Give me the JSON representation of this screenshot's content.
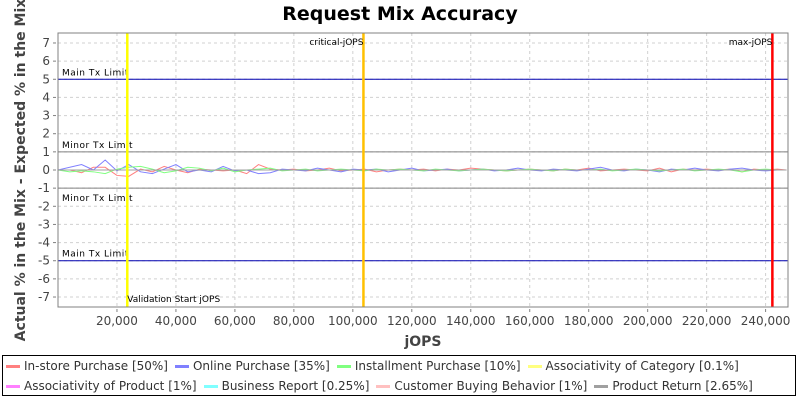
{
  "chart_data": {
    "type": "line",
    "title": "Request Mix Accuracy",
    "xlabel": "jOPS",
    "ylabel": "Actual % in the Mix - Expected % in the Mix",
    "xlim": [
      0,
      247600
    ],
    "ylim": [
      -7.55,
      7.55
    ],
    "x_ticks": [
      "20,000",
      "40,000",
      "60,000",
      "80,000",
      "100,000",
      "120,000",
      "140,000",
      "160,000",
      "180,000",
      "200,000",
      "220,000",
      "240,000"
    ],
    "x_tick_values": [
      20000,
      40000,
      60000,
      80000,
      100000,
      120000,
      140000,
      160000,
      180000,
      200000,
      220000,
      240000
    ],
    "y_ticks": [
      7,
      6,
      5,
      4,
      3,
      2,
      1,
      0,
      -1,
      -2,
      -3,
      -4,
      -5,
      -6,
      -7
    ],
    "grid": true,
    "legend_position": "bottom",
    "x": [
      0,
      4000,
      8000,
      12000,
      16000,
      20000,
      24000,
      28000,
      32000,
      36000,
      40000,
      44000,
      48000,
      52000,
      56000,
      60000,
      64000,
      68000,
      72000,
      76000,
      80000,
      84000,
      88000,
      92000,
      96000,
      100000,
      104000,
      108000,
      112000,
      116000,
      120000,
      124000,
      128000,
      132000,
      136000,
      140000,
      144000,
      148000,
      152000,
      156000,
      160000,
      164000,
      168000,
      172000,
      176000,
      180000,
      184000,
      188000,
      192000,
      196000,
      200000,
      204000,
      208000,
      212000,
      216000,
      220000,
      224000,
      228000,
      232000,
      236000,
      240000,
      244000,
      247000
    ],
    "series": [
      {
        "name": "In-store Purchase [50%]",
        "color": "#ff8080",
        "values": [
          0,
          0,
          -0.15,
          0.15,
          0.15,
          -0.3,
          -0.35,
          0.05,
          -0.1,
          0.2,
          0,
          -0.15,
          0.05,
          0,
          -0.05,
          0,
          -0.2,
          0.3,
          0.05,
          0,
          0.05,
          -0.05,
          0,
          0.1,
          -0.05,
          0,
          0.05,
          -0.1,
          0,
          0.05,
          0,
          0.05,
          -0.05,
          0.05,
          0,
          0.1,
          0.05,
          0,
          -0.05,
          0,
          0.05,
          0,
          -0.05,
          0.05,
          0,
          0.1,
          -0.05,
          0,
          0.05,
          0,
          -0.05,
          0.1,
          -0.1,
          0.05,
          0,
          0.05,
          0,
          0.05,
          -0.1,
          0.05,
          0,
          0.05,
          0
        ]
      },
      {
        "name": "Online Purchase [35%]",
        "color": "#8080ff",
        "values": [
          0,
          0.15,
          0.3,
          0,
          0.55,
          -0.05,
          0.3,
          -0.1,
          -0.2,
          0.05,
          0.3,
          -0.1,
          0,
          -0.1,
          0.2,
          -0.05,
          0,
          -0.2,
          -0.15,
          0.05,
          0,
          -0.05,
          0.1,
          0,
          -0.1,
          0.05,
          0,
          0.05,
          -0.1,
          0,
          0.1,
          -0.05,
          0,
          0.05,
          -0.05,
          0,
          0.05,
          -0.05,
          0,
          0.1,
          0,
          -0.05,
          0.05,
          0,
          -0.05,
          0.05,
          0.15,
          0,
          -0.05,
          0.05,
          0,
          -0.1,
          0.05,
          0,
          0.1,
          0,
          -0.05,
          0.05,
          0.1,
          0,
          -0.05,
          0,
          0
        ]
      },
      {
        "name": "Installment Purchase [10%]",
        "color": "#80ff80",
        "values": [
          0,
          -0.1,
          -0.05,
          -0.1,
          -0.2,
          0.05,
          0.15,
          0.2,
          0.05,
          -0.15,
          -0.05,
          0.15,
          0.1,
          -0.05,
          0.1,
          -0.1,
          0,
          0.05,
          0.1,
          -0.05,
          0,
          0.05,
          -0.05,
          0,
          0.05,
          0,
          -0.05,
          0.05,
          0,
          0.05,
          0,
          -0.05,
          0.05,
          0,
          -0.05,
          0,
          0.05,
          0,
          -0.05,
          0,
          0.05,
          0,
          -0.05,
          0.05,
          0,
          0,
          0.05,
          -0.05,
          0,
          0.05,
          0,
          -0.05,
          0,
          0.05,
          -0.05,
          0,
          0.05,
          0,
          -0.1,
          0,
          0.05,
          0,
          0
        ]
      },
      {
        "name": "Associativity of Category [0.1%]",
        "color": "#ffff80",
        "values": [
          0,
          0,
          0,
          0,
          0,
          0,
          0,
          0,
          0,
          0,
          0,
          0,
          0,
          0,
          0,
          0,
          0,
          0,
          0,
          0,
          0,
          0,
          0,
          0,
          0,
          0,
          0,
          0,
          0,
          0,
          0,
          0,
          0,
          0,
          0,
          0,
          0,
          0,
          0,
          0,
          0,
          0,
          0,
          0,
          0,
          0,
          0,
          0,
          0,
          0,
          0,
          0,
          0,
          0,
          0,
          0,
          0,
          0,
          0,
          0,
          0,
          0,
          0
        ]
      },
      {
        "name": "Associativity of Product [1%]",
        "color": "#ff80ff",
        "values": [
          0,
          0,
          0,
          0,
          0,
          0,
          0,
          0,
          0,
          0,
          0,
          0,
          0,
          0,
          0,
          0,
          0,
          0,
          0,
          0,
          0,
          0,
          0,
          0,
          0,
          0,
          0,
          0,
          0,
          0,
          0,
          0,
          0,
          0,
          0,
          0,
          0,
          0,
          0,
          0,
          0,
          0,
          0,
          0,
          0,
          0,
          0,
          0,
          0,
          0,
          0,
          0,
          0,
          0,
          0,
          0,
          0,
          0,
          0,
          0,
          0,
          0,
          0
        ]
      },
      {
        "name": "Business Report [0.25%]",
        "color": "#80ffff",
        "values": [
          0,
          0,
          0,
          0,
          0,
          0,
          0,
          0,
          0,
          0,
          0,
          0,
          0,
          0,
          0,
          0,
          0,
          0,
          0,
          0,
          0,
          0,
          0,
          0,
          0,
          0,
          0,
          0,
          0,
          0,
          0,
          0,
          0,
          0,
          0,
          0,
          0,
          0,
          0,
          0,
          0,
          0,
          0,
          0,
          0,
          0,
          0,
          0,
          0,
          0,
          0,
          0,
          0,
          0,
          0,
          0,
          0,
          0,
          0,
          0,
          0,
          0,
          0
        ]
      },
      {
        "name": "Customer Buying Behavior [1%]",
        "color": "#ffc0c0",
        "values": [
          0,
          0,
          0,
          0,
          0,
          0,
          0,
          0,
          0,
          0,
          0,
          0,
          0,
          0,
          0,
          0,
          0,
          0,
          0,
          0,
          0,
          0,
          0,
          0,
          0,
          0,
          0,
          0,
          0,
          0,
          0,
          0,
          0,
          0,
          0,
          0,
          0,
          0,
          0,
          0,
          0,
          0,
          0,
          0,
          0,
          0,
          0,
          0,
          0,
          0,
          0,
          0,
          0,
          0,
          0,
          0,
          0,
          0,
          0,
          0,
          0,
          0,
          0
        ]
      },
      {
        "name": "Product Return [2.65%]",
        "color": "#a0a0a0",
        "values": [
          0,
          0,
          0,
          0,
          0,
          0,
          0,
          0,
          0,
          0,
          0,
          0,
          0,
          0,
          0,
          0,
          0,
          0,
          0,
          0,
          0,
          0,
          0,
          0,
          0,
          0,
          0,
          0,
          0,
          0,
          0,
          0,
          0,
          0,
          0,
          0,
          0,
          0,
          0,
          0,
          0,
          0,
          0,
          0,
          0,
          0,
          0,
          0,
          0,
          0,
          0,
          0,
          0,
          0,
          0,
          0,
          0,
          0,
          0,
          0,
          0,
          0,
          0
        ]
      }
    ],
    "horizontal_markers": [
      {
        "label": "Main Tx Limit",
        "value": 5,
        "color": "#0000b0",
        "label_side": "above"
      },
      {
        "label": "Minor Tx Limit",
        "value": 1,
        "color": "#808080",
        "label_side": "above"
      },
      {
        "label": "Minor Tx Limit",
        "value": -1,
        "color": "#808080",
        "label_side": "below"
      },
      {
        "label": "Main Tx Limit",
        "value": -5,
        "color": "#0000b0",
        "label_side": "above"
      }
    ],
    "vertical_markers": [
      {
        "label": "Validation Start jOPS",
        "value": 23500,
        "color": "#ffff00",
        "label_pos": "bottom"
      },
      {
        "label": "critical-jOPS",
        "value": 103600,
        "color": "#ffc000",
        "label_pos": "top"
      },
      {
        "label": "max-jOPS",
        "value": 242300,
        "color": "#ff0000",
        "label_pos": "top"
      }
    ]
  }
}
